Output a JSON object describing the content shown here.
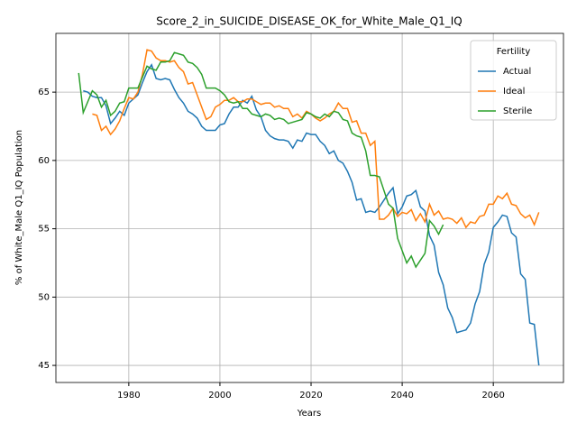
{
  "chart_data": {
    "type": "line",
    "title": "Score_2_in_SUICIDE_DISEASE_OK_for_White_Male_Q1_IQ",
    "xlabel": "Years",
    "ylabel": "% of White_Male Q1_IQ Population",
    "legend_title": "Fertility",
    "legend_loc": "upper right",
    "grid": true,
    "xlim": [
      1964,
      2075.4
    ],
    "ylim": [
      43.75,
      69.3
    ],
    "xticks": [
      1980,
      2000,
      2020,
      2040,
      2060
    ],
    "yticks": [
      45,
      50,
      55,
      60,
      65
    ],
    "x": [
      1969,
      1970,
      1971,
      1972,
      1973,
      1974,
      1975,
      1976,
      1977,
      1978,
      1979,
      1980,
      1981,
      1982,
      1983,
      1984,
      1985,
      1986,
      1987,
      1988,
      1989,
      1990,
      1991,
      1992,
      1993,
      1994,
      1995,
      1996,
      1997,
      1998,
      1999,
      2000,
      2001,
      2002,
      2003,
      2004,
      2005,
      2006,
      2007,
      2008,
      2009,
      2010,
      2011,
      2012,
      2013,
      2014,
      2015,
      2016,
      2017,
      2018,
      2019,
      2020,
      2021,
      2022,
      2023,
      2024,
      2025,
      2026,
      2027,
      2028,
      2029,
      2030,
      2031,
      2032,
      2033,
      2034,
      2035,
      2036,
      2037,
      2038,
      2039,
      2040,
      2041,
      2042,
      2043,
      2044,
      2045,
      2046,
      2047,
      2048,
      2049,
      2050,
      2051,
      2052,
      2053,
      2054,
      2055,
      2056,
      2057,
      2058,
      2059,
      2060,
      2061,
      2062,
      2063,
      2064,
      2065,
      2066,
      2067,
      2068,
      2069,
      2070
    ],
    "series": [
      {
        "name": "Actual",
        "color": "#1f77b4",
        "values": [
          null,
          65.1,
          65.0,
          64.7,
          64.6,
          64.6,
          64.0,
          62.7,
          63.1,
          63.6,
          63.3,
          64.2,
          64.5,
          64.8,
          65.7,
          66.5,
          67.0,
          66.0,
          65.9,
          66.0,
          65.9,
          65.2,
          64.6,
          64.2,
          63.6,
          63.4,
          63.1,
          62.5,
          62.2,
          62.2,
          62.2,
          62.6,
          62.7,
          63.4,
          63.9,
          63.9,
          64.4,
          64.2,
          64.7,
          63.7,
          63.2,
          62.2,
          61.8,
          61.6,
          61.5,
          61.5,
          61.4,
          60.9,
          61.5,
          61.4,
          62.0,
          61.9,
          61.9,
          61.4,
          61.1,
          60.5,
          60.7,
          60.0,
          59.8,
          59.2,
          58.4,
          57.1,
          57.2,
          56.2,
          56.3,
          56.2,
          56.6,
          57.1,
          57.6,
          58.0,
          56.1,
          56.6,
          57.4,
          57.5,
          57.8,
          56.6,
          56.3,
          54.5,
          53.8,
          51.8,
          50.9,
          49.2,
          48.5,
          47.4,
          47.5,
          47.6,
          48.1,
          49.5,
          50.4,
          52.4,
          53.3,
          55.1,
          55.5,
          56.0,
          55.9,
          54.7,
          54.4,
          51.7,
          51.3,
          48.1,
          48.0,
          45.0
        ]
      },
      {
        "name": "Ideal",
        "color": "#ff7f0e",
        "values": [
          null,
          null,
          null,
          63.4,
          63.3,
          62.2,
          62.5,
          61.9,
          62.3,
          62.9,
          63.8,
          64.6,
          64.5,
          65.0,
          66.3,
          68.1,
          68.0,
          67.5,
          67.3,
          67.3,
          67.2,
          67.3,
          66.8,
          66.5,
          65.6,
          65.7,
          64.8,
          63.9,
          63.0,
          63.2,
          63.9,
          64.1,
          64.4,
          64.4,
          64.6,
          64.3,
          64.3,
          64.5,
          64.5,
          64.3,
          64.1,
          64.2,
          64.2,
          63.9,
          64.0,
          63.8,
          63.8,
          63.2,
          63.4,
          63.1,
          63.6,
          63.4,
          63.1,
          62.9,
          63.1,
          63.4,
          63.6,
          64.2,
          63.8,
          63.8,
          62.8,
          62.9,
          62.0,
          62.0,
          61.1,
          61.4,
          55.7,
          55.7,
          56.0,
          56.5,
          55.9,
          56.2,
          56.1,
          56.4,
          55.6,
          56.1,
          55.5,
          56.8,
          56.0,
          56.3,
          55.7,
          55.8,
          55.7,
          55.4,
          55.8,
          55.1,
          55.5,
          55.4,
          55.9,
          56.0,
          56.8,
          56.8,
          57.4,
          57.2,
          57.6,
          56.8,
          56.7,
          56.1,
          55.8,
          56.0,
          55.3,
          56.2
        ]
      },
      {
        "name": "Sterile",
        "color": "#2ca02c",
        "values": [
          66.4,
          63.5,
          64.3,
          65.1,
          64.8,
          63.9,
          64.4,
          63.3,
          63.6,
          64.2,
          64.3,
          65.3,
          65.3,
          65.3,
          66.1,
          66.9,
          66.7,
          66.6,
          67.2,
          67.2,
          67.3,
          67.9,
          67.8,
          67.7,
          67.2,
          67.1,
          66.8,
          66.3,
          65.3,
          65.3,
          65.3,
          65.1,
          64.8,
          64.3,
          64.2,
          64.3,
          63.8,
          63.8,
          63.4,
          63.3,
          63.2,
          63.4,
          63.3,
          63.0,
          63.1,
          63.0,
          62.7,
          62.8,
          62.9,
          63.0,
          63.5,
          63.4,
          63.2,
          63.1,
          63.4,
          63.2,
          63.6,
          63.5,
          63.0,
          62.9,
          62.0,
          61.8,
          61.7,
          60.7,
          58.9,
          58.9,
          58.8,
          57.8,
          56.8,
          56.5,
          54.3,
          53.4,
          52.5,
          53.0,
          52.2,
          52.7,
          53.2,
          55.6,
          55.2,
          54.6,
          55.3,
          null,
          null,
          null,
          null,
          null,
          null,
          null,
          null,
          null,
          null,
          null,
          null,
          null,
          null,
          null,
          null,
          null,
          null,
          null,
          null,
          null
        ]
      }
    ]
  }
}
